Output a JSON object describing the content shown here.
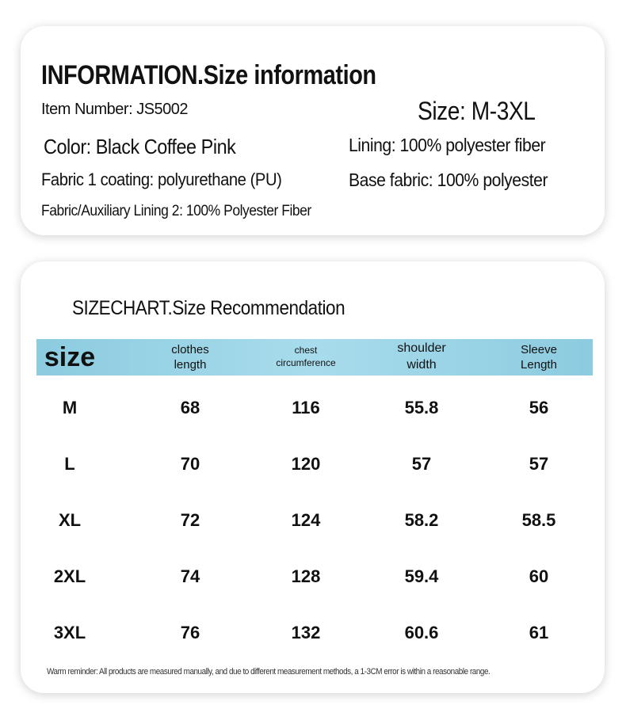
{
  "info": {
    "title": "INFORMATION.Size information",
    "item_number": "Item Number: JS5002",
    "size": "Size: M-3XL",
    "color": "Color: Black Coffee Pink",
    "lining": "Lining: 100% polyester fiber",
    "fabric1": "Fabric 1 coating: polyurethane (PU)",
    "base_fabric": "Base fabric: 100% polyester",
    "fabric2": "Fabric/Auxiliary Lining 2: 100% Polyester Fiber"
  },
  "size_chart": {
    "title": "SIZECHART.Size Recommendation",
    "table": {
      "header": [
        "size",
        "clothes length",
        "chest circumference",
        "shoulder width",
        "Sleeve Length"
      ],
      "rows": [
        [
          "M",
          68,
          116,
          55.8,
          56
        ],
        [
          "L",
          70,
          120,
          57,
          57
        ],
        [
          "XL",
          72,
          124,
          58.2,
          58.5
        ],
        [
          "2XL",
          74,
          128,
          59.4,
          60
        ],
        [
          "3XL",
          76,
          132,
          60.6,
          61
        ]
      ]
    },
    "note": "Warm reminder: All products are measured manually, and due to different measurement methods, a 1-3CM error is within a reasonable range."
  }
}
